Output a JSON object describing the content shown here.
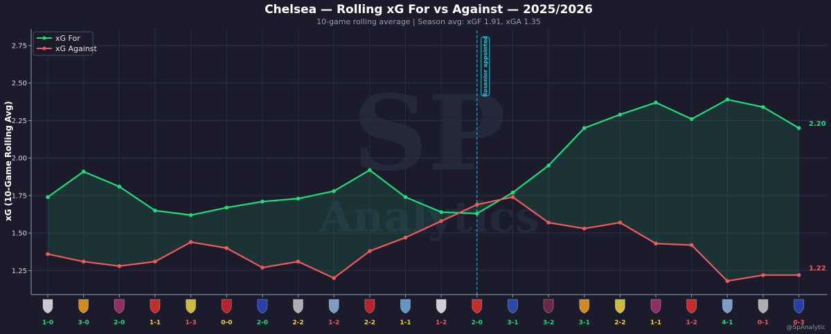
{
  "title": "Chelsea — Rolling xG For vs Against — 2025/2026",
  "subtitle": "10-game rolling average  |  Season avg: xGF 1.91, xGA 1.35",
  "watermark": "@SpAnalytic",
  "background_watermark": {
    "big": "SP",
    "small": "Analytics"
  },
  "chart_data": {
    "type": "line",
    "title": "Chelsea — Rolling xG For vs Against — 2025/2026",
    "ylabel": "xG (10-Game Rolling Avg)",
    "ylim": [
      1.09,
      2.86
    ],
    "yticks": [
      "1.25",
      "1.50",
      "1.75",
      "2.00",
      "2.25",
      "2.50",
      "2.75"
    ],
    "grid": true,
    "legend_position": "top-left",
    "x": [
      0,
      1,
      2,
      3,
      4,
      5,
      6,
      7,
      8,
      9,
      10,
      11,
      12,
      13,
      14,
      15,
      16,
      17,
      18,
      19,
      20,
      21
    ],
    "series": [
      {
        "name": "xG For",
        "color": "#22dd77",
        "values": [
          1.74,
          1.91,
          1.81,
          1.65,
          1.62,
          1.67,
          1.71,
          1.73,
          1.78,
          1.92,
          1.74,
          1.64,
          1.63,
          1.77,
          1.95,
          2.2,
          2.29,
          2.37,
          2.26,
          2.39,
          2.34,
          2.2
        ]
      },
      {
        "name": "xG Against",
        "color": "#f05a5a",
        "values": [
          1.36,
          1.31,
          1.28,
          1.31,
          1.44,
          1.4,
          1.27,
          1.31,
          1.2,
          1.38,
          1.47,
          1.58,
          1.69,
          1.74,
          1.57,
          1.53,
          1.57,
          1.43,
          1.42,
          1.18,
          1.22,
          1.22
        ]
      }
    ],
    "end_labels": [
      "2.20",
      "1.22"
    ],
    "annotation": {
      "label": "Rosenior appointed",
      "x_index": 12,
      "color": "#25c7d9"
    },
    "matches": [
      {
        "crest": "tottenham-crest",
        "result": "1-0",
        "outcome": "win"
      },
      {
        "crest": "wolves-crest",
        "result": "3-0",
        "outcome": "win"
      },
      {
        "crest": "burnley-crest",
        "result": "2-0",
        "outcome": "win"
      },
      {
        "crest": "arsenal-crest",
        "result": "1-1",
        "outcome": "draw"
      },
      {
        "crest": "leeds-crest",
        "result": "1-3",
        "outcome": "loss"
      },
      {
        "crest": "bournemouth-crest",
        "result": "0-0",
        "outcome": "draw"
      },
      {
        "crest": "everton-crest",
        "result": "2-0",
        "outcome": "win"
      },
      {
        "crest": "newcastle-crest",
        "result": "2-2",
        "outcome": "draw"
      },
      {
        "crest": "aston-villa-crest",
        "result": "1-2",
        "outcome": "loss"
      },
      {
        "crest": "bournemouth-crest",
        "result": "2-2",
        "outcome": "draw"
      },
      {
        "crest": "man-city-crest",
        "result": "1-1",
        "outcome": "draw"
      },
      {
        "crest": "fulham-crest",
        "result": "1-2",
        "outcome": "loss"
      },
      {
        "crest": "brentford-crest",
        "result": "2-0",
        "outcome": "win"
      },
      {
        "crest": "crystal-palace-crest",
        "result": "3-1",
        "outcome": "win"
      },
      {
        "crest": "west-ham-crest",
        "result": "3-2",
        "outcome": "win"
      },
      {
        "crest": "wolves-crest",
        "result": "3-1",
        "outcome": "win"
      },
      {
        "crest": "leeds-crest",
        "result": "2-2",
        "outcome": "draw"
      },
      {
        "crest": "burnley-crest",
        "result": "1-1",
        "outcome": "draw"
      },
      {
        "crest": "arsenal-crest",
        "result": "1-2",
        "outcome": "loss"
      },
      {
        "crest": "aston-villa-crest",
        "result": "4-1",
        "outcome": "win"
      },
      {
        "crest": "newcastle-crest",
        "result": "0-1",
        "outcome": "loss"
      },
      {
        "crest": "everton-crest",
        "result": "0-3",
        "outcome": "loss"
      }
    ],
    "outcome_colors": {
      "win": "#22dd77",
      "draw": "#f2d14b",
      "loss": "#f05a5a"
    }
  }
}
